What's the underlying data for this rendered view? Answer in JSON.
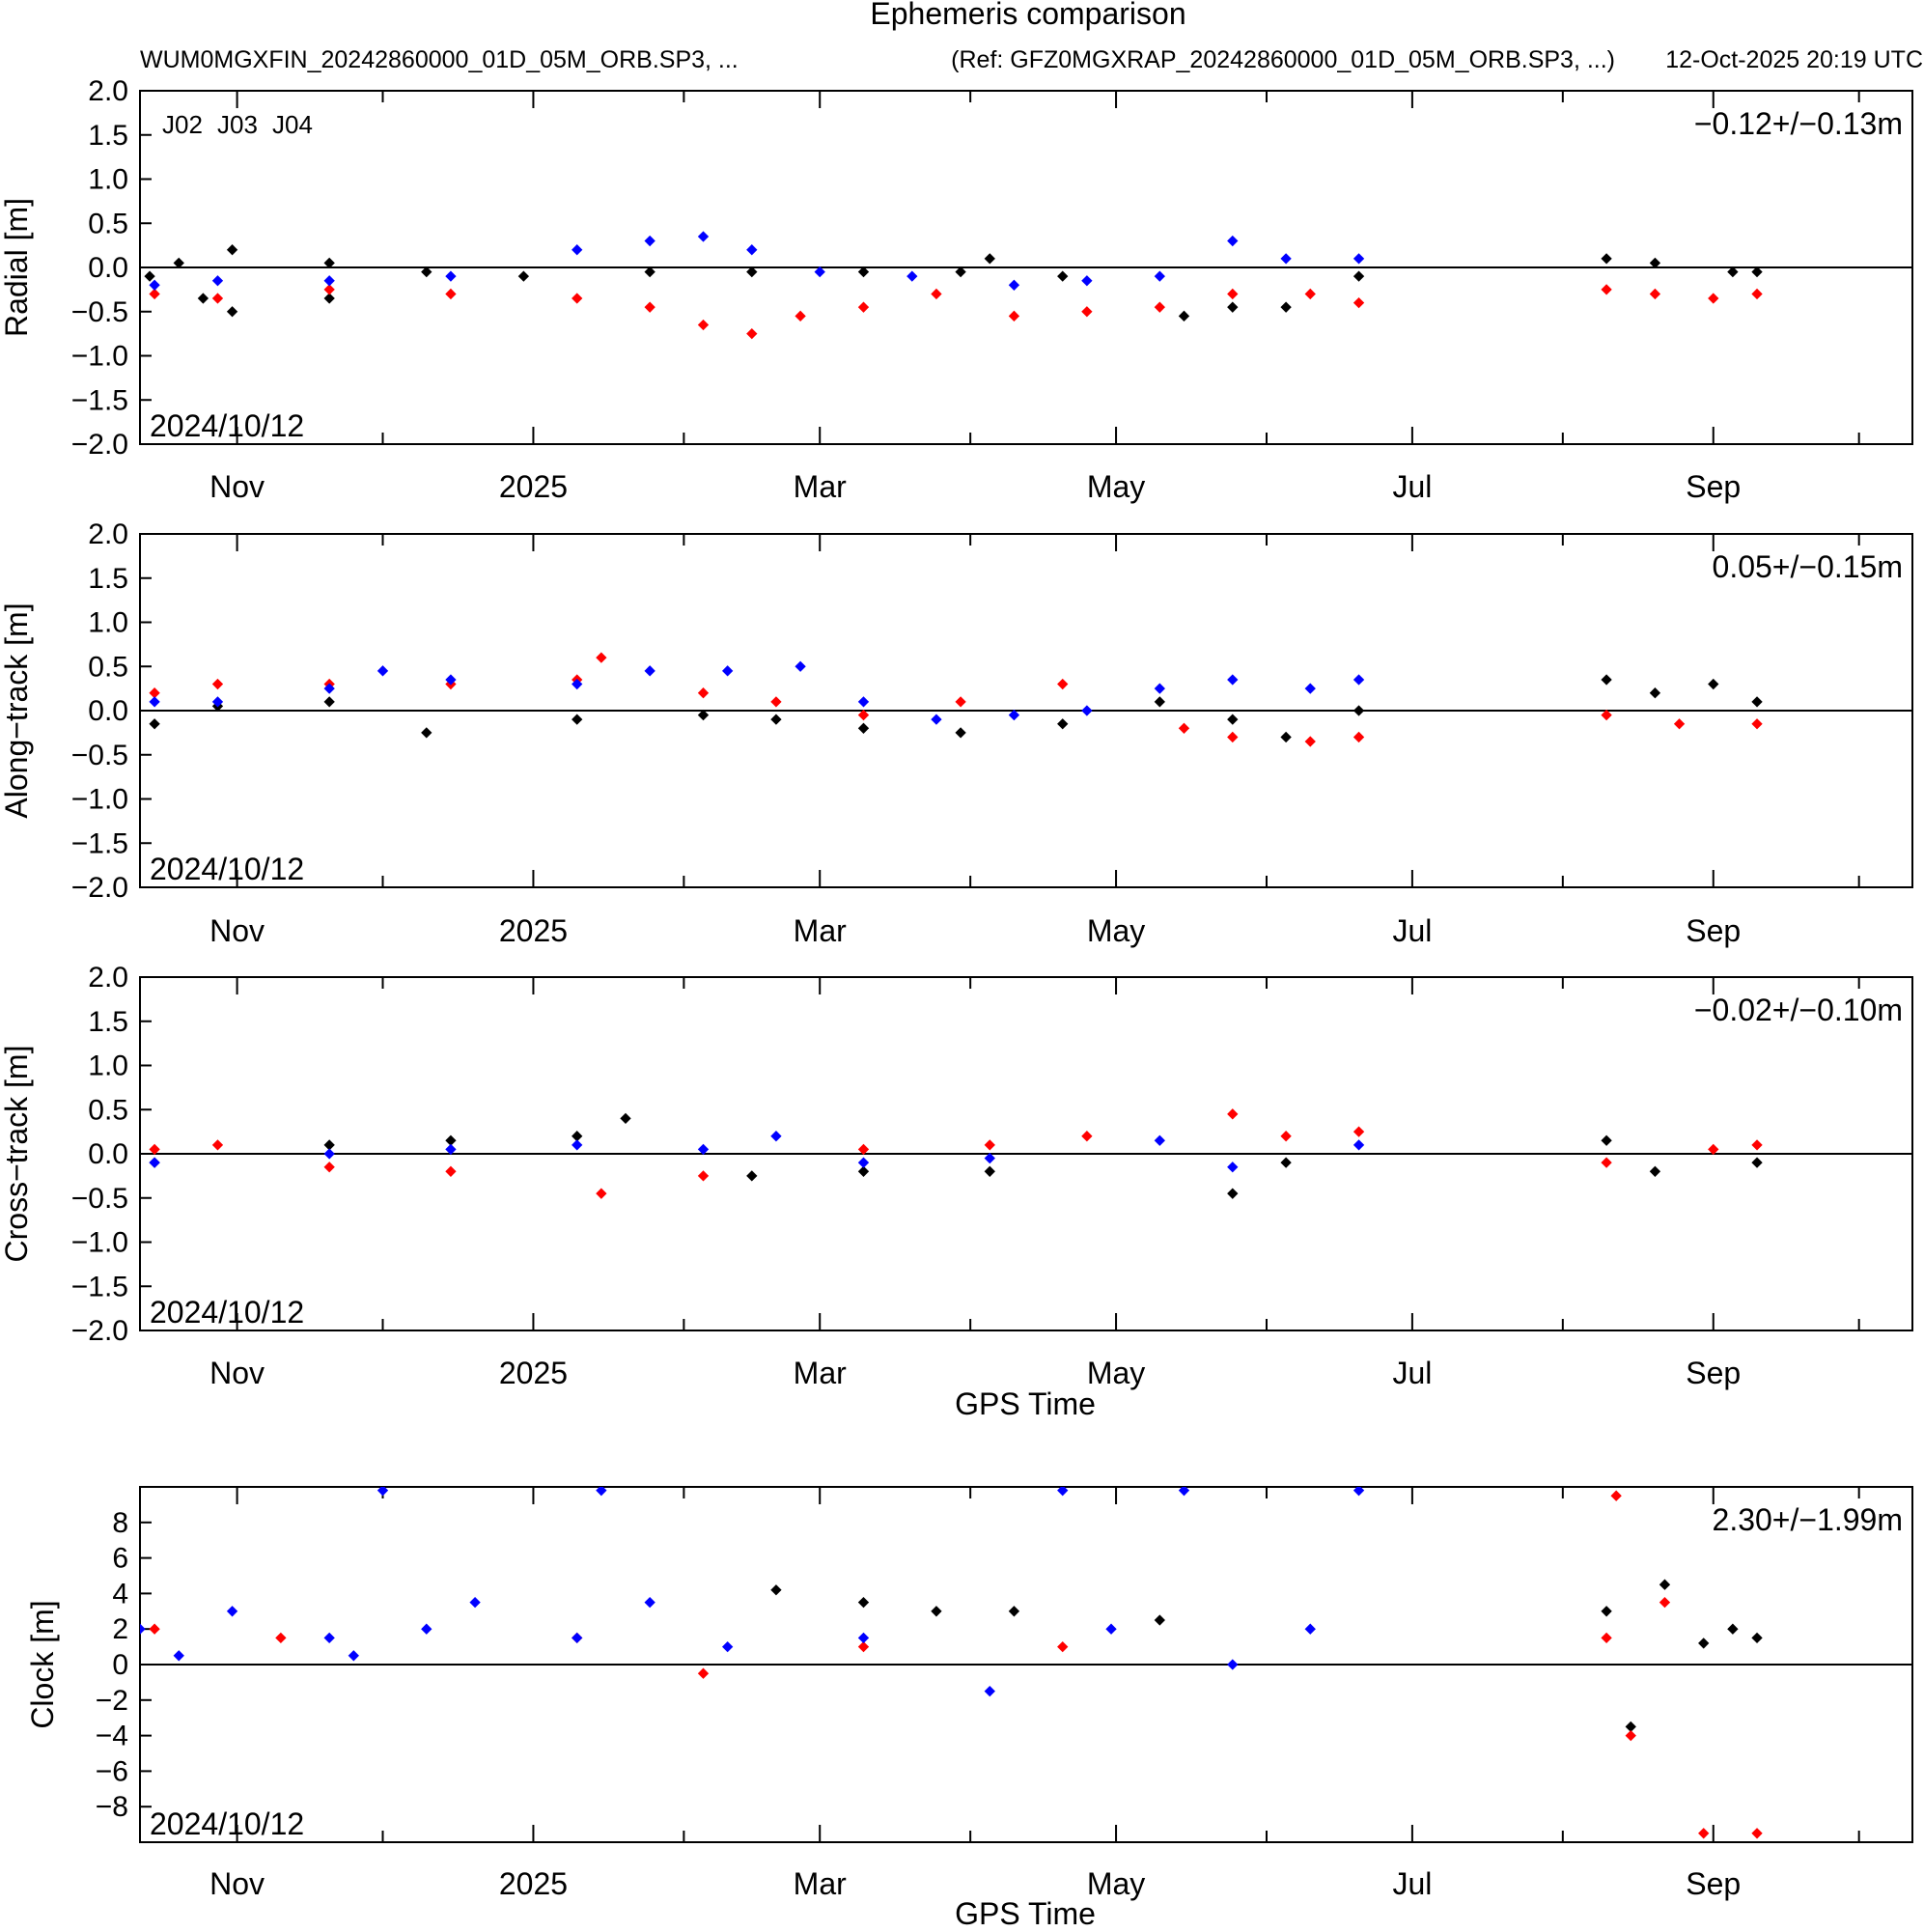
{
  "figure": {
    "title": "Ephemeris comparison",
    "solution": "WUM0MGXFIN_20242860000_01D_05M_ORB.SP3, ...",
    "reference": "(Ref: GFZ0MGXRAP_20242860000_01D_05M_ORB.SP3, ...)",
    "generated": "12-Oct-2025 20:19 UTC",
    "start_date_label": "2024/10/12"
  },
  "colors": {
    "J02": "#000000",
    "J03": "#ff0000",
    "J04": "#0000ff"
  },
  "legend": [
    {
      "name": "J02",
      "color": "#000000"
    },
    {
      "name": "J03",
      "color": "#ff0000"
    },
    {
      "name": "J04",
      "color": "#0000ff"
    }
  ],
  "chart_data": [
    {
      "type": "scatter",
      "ylabel": "Radial [m]",
      "xlabel": "",
      "ylim": [
        -2.0,
        2.0
      ],
      "yticks": [
        "2.0",
        "1.5",
        "1.0",
        "0.5",
        "0.0",
        "−0.5",
        "−1.0",
        "−1.5",
        "−2.0"
      ],
      "xlim": [
        "2024-10-12",
        "2025-10-12"
      ],
      "xtick_labels": [
        "Nov",
        "2025",
        "Mar",
        "May",
        "Jul",
        "Sep"
      ],
      "xtick_dates": [
        "2024-11-01",
        "2025-01-01",
        "2025-03-01",
        "2025-05-01",
        "2025-07-01",
        "2025-09-01"
      ],
      "stat": "−0.12+/−0.13m",
      "grid": false,
      "legend_position": "top-left",
      "series": [
        {
          "name": "J02",
          "color": "#000000",
          "points": [
            [
              "2024-10-14",
              -0.1
            ],
            [
              "2024-10-20",
              0.05
            ],
            [
              "2024-10-25",
              -0.35
            ],
            [
              "2024-10-31",
              0.2
            ],
            [
              "2024-10-31",
              -0.5
            ],
            [
              "2024-11-20",
              0.05
            ],
            [
              "2024-11-20",
              -0.35
            ],
            [
              "2024-12-10",
              -0.05
            ],
            [
              "2024-12-30",
              -0.1
            ],
            [
              "2025-01-25",
              -0.05
            ],
            [
              "2025-02-15",
              -0.05
            ],
            [
              "2025-03-10",
              -0.05
            ],
            [
              "2025-03-30",
              -0.05
            ],
            [
              "2025-04-05",
              0.1
            ],
            [
              "2025-04-20",
              -0.1
            ],
            [
              "2025-05-15",
              -0.55
            ],
            [
              "2025-05-25",
              -0.45
            ],
            [
              "2025-06-05",
              -0.45
            ],
            [
              "2025-06-20",
              -0.1
            ],
            [
              "2025-08-10",
              0.1
            ],
            [
              "2025-08-20",
              0.05
            ],
            [
              "2025-09-05",
              -0.05
            ],
            [
              "2025-09-10",
              -0.05
            ]
          ]
        },
        {
          "name": "J03",
          "color": "#ff0000",
          "points": [
            [
              "2024-10-15",
              -0.3
            ],
            [
              "2024-10-28",
              -0.35
            ],
            [
              "2024-11-20",
              -0.25
            ],
            [
              "2024-12-15",
              -0.3
            ],
            [
              "2025-01-10",
              -0.35
            ],
            [
              "2025-01-25",
              -0.45
            ],
            [
              "2025-02-05",
              -0.65
            ],
            [
              "2025-02-15",
              -0.75
            ],
            [
              "2025-02-25",
              -0.55
            ],
            [
              "2025-03-10",
              -0.45
            ],
            [
              "2025-03-25",
              -0.3
            ],
            [
              "2025-04-10",
              -0.55
            ],
            [
              "2025-04-25",
              -0.5
            ],
            [
              "2025-05-10",
              -0.45
            ],
            [
              "2025-05-25",
              -0.3
            ],
            [
              "2025-06-10",
              -0.3
            ],
            [
              "2025-06-20",
              -0.4
            ],
            [
              "2025-08-10",
              -0.25
            ],
            [
              "2025-08-20",
              -0.3
            ],
            [
              "2025-09-01",
              -0.35
            ],
            [
              "2025-09-10",
              -0.3
            ]
          ]
        },
        {
          "name": "J04",
          "color": "#0000ff",
          "points": [
            [
              "2024-10-15",
              -0.2
            ],
            [
              "2024-10-28",
              -0.15
            ],
            [
              "2024-11-20",
              -0.15
            ],
            [
              "2024-12-15",
              -0.1
            ],
            [
              "2025-01-10",
              0.2
            ],
            [
              "2025-01-25",
              0.3
            ],
            [
              "2025-02-05",
              0.35
            ],
            [
              "2025-02-15",
              0.2
            ],
            [
              "2025-03-01",
              -0.05
            ],
            [
              "2025-03-20",
              -0.1
            ],
            [
              "2025-04-10",
              -0.2
            ],
            [
              "2025-04-25",
              -0.15
            ],
            [
              "2025-05-10",
              -0.1
            ],
            [
              "2025-05-25",
              0.3
            ],
            [
              "2025-06-05",
              0.1
            ],
            [
              "2025-06-20",
              0.1
            ]
          ]
        }
      ]
    },
    {
      "type": "scatter",
      "ylabel": "Along−track [m]",
      "xlabel": "",
      "ylim": [
        -2.0,
        2.0
      ],
      "yticks": [
        "2.0",
        "1.5",
        "1.0",
        "0.5",
        "0.0",
        "−0.5",
        "−1.0",
        "−1.5",
        "−2.0"
      ],
      "xlim": [
        "2024-10-12",
        "2025-10-12"
      ],
      "xtick_labels": [
        "Nov",
        "2025",
        "Mar",
        "May",
        "Jul",
        "Sep"
      ],
      "xtick_dates": [
        "2024-11-01",
        "2025-01-01",
        "2025-03-01",
        "2025-05-01",
        "2025-07-01",
        "2025-09-01"
      ],
      "stat": "0.05+/−0.15m",
      "grid": false,
      "series": [
        {
          "name": "J02",
          "color": "#000000",
          "points": [
            [
              "2024-10-15",
              -0.15
            ],
            [
              "2024-10-28",
              0.05
            ],
            [
              "2024-11-20",
              0.1
            ],
            [
              "2024-12-10",
              -0.25
            ],
            [
              "2025-01-10",
              -0.1
            ],
            [
              "2025-02-05",
              -0.05
            ],
            [
              "2025-02-20",
              -0.1
            ],
            [
              "2025-03-10",
              -0.2
            ],
            [
              "2025-03-30",
              -0.25
            ],
            [
              "2025-04-20",
              -0.15
            ],
            [
              "2025-05-10",
              0.1
            ],
            [
              "2025-05-25",
              -0.1
            ],
            [
              "2025-06-05",
              -0.3
            ],
            [
              "2025-06-20",
              0.0
            ],
            [
              "2025-08-10",
              0.35
            ],
            [
              "2025-08-20",
              0.2
            ],
            [
              "2025-09-01",
              0.3
            ],
            [
              "2025-09-10",
              0.1
            ]
          ]
        },
        {
          "name": "J03",
          "color": "#ff0000",
          "points": [
            [
              "2024-10-15",
              0.2
            ],
            [
              "2024-10-28",
              0.3
            ],
            [
              "2024-11-20",
              0.3
            ],
            [
              "2024-12-15",
              0.3
            ],
            [
              "2025-01-10",
              0.35
            ],
            [
              "2025-01-15",
              0.6
            ],
            [
              "2025-02-05",
              0.2
            ],
            [
              "2025-02-20",
              0.1
            ],
            [
              "2025-03-10",
              -0.05
            ],
            [
              "2025-03-30",
              0.1
            ],
            [
              "2025-04-20",
              0.3
            ],
            [
              "2025-05-15",
              -0.2
            ],
            [
              "2025-05-25",
              -0.3
            ],
            [
              "2025-06-10",
              -0.35
            ],
            [
              "2025-06-20",
              -0.3
            ],
            [
              "2025-08-10",
              -0.05
            ],
            [
              "2025-08-25",
              -0.15
            ],
            [
              "2025-09-10",
              -0.15
            ]
          ]
        },
        {
          "name": "J04",
          "color": "#0000ff",
          "points": [
            [
              "2024-10-15",
              0.1
            ],
            [
              "2024-10-28",
              0.1
            ],
            [
              "2024-11-20",
              0.25
            ],
            [
              "2024-12-01",
              0.45
            ],
            [
              "2024-12-15",
              0.35
            ],
            [
              "2025-01-10",
              0.3
            ],
            [
              "2025-01-25",
              0.45
            ],
            [
              "2025-02-10",
              0.45
            ],
            [
              "2025-02-25",
              0.5
            ],
            [
              "2025-03-10",
              0.1
            ],
            [
              "2025-03-25",
              -0.1
            ],
            [
              "2025-04-10",
              -0.05
            ],
            [
              "2025-04-25",
              0.0
            ],
            [
              "2025-05-10",
              0.25
            ],
            [
              "2025-05-25",
              0.35
            ],
            [
              "2025-06-10",
              0.25
            ],
            [
              "2025-06-20",
              0.35
            ]
          ]
        }
      ]
    },
    {
      "type": "scatter",
      "ylabel": "Cross−track [m]",
      "xlabel": "GPS Time",
      "ylim": [
        -2.0,
        2.0
      ],
      "yticks": [
        "2.0",
        "1.5",
        "1.0",
        "0.5",
        "0.0",
        "−0.5",
        "−1.0",
        "−1.5",
        "−2.0"
      ],
      "xlim": [
        "2024-10-12",
        "2025-10-12"
      ],
      "xtick_labels": [
        "Nov",
        "2025",
        "Mar",
        "May",
        "Jul",
        "Sep"
      ],
      "xtick_dates": [
        "2024-11-01",
        "2025-01-01",
        "2025-03-01",
        "2025-05-01",
        "2025-07-01",
        "2025-09-01"
      ],
      "stat": "−0.02+/−0.10m",
      "grid": false,
      "series": [
        {
          "name": "J02",
          "color": "#000000",
          "points": [
            [
              "2024-10-15",
              -0.1
            ],
            [
              "2024-11-20",
              0.1
            ],
            [
              "2024-12-15",
              0.15
            ],
            [
              "2025-01-10",
              0.2
            ],
            [
              "2025-01-20",
              0.4
            ],
            [
              "2025-02-15",
              -0.25
            ],
            [
              "2025-03-10",
              -0.2
            ],
            [
              "2025-04-05",
              -0.2
            ],
            [
              "2025-05-25",
              -0.45
            ],
            [
              "2025-06-05",
              -0.1
            ],
            [
              "2025-08-10",
              0.15
            ],
            [
              "2025-08-20",
              -0.2
            ],
            [
              "2025-09-10",
              -0.1
            ]
          ]
        },
        {
          "name": "J03",
          "color": "#ff0000",
          "points": [
            [
              "2024-10-15",
              0.05
            ],
            [
              "2024-10-28",
              0.1
            ],
            [
              "2024-11-20",
              -0.15
            ],
            [
              "2024-12-15",
              -0.2
            ],
            [
              "2025-01-15",
              -0.45
            ],
            [
              "2025-02-05",
              -0.25
            ],
            [
              "2025-03-10",
              0.05
            ],
            [
              "2025-04-05",
              0.1
            ],
            [
              "2025-04-25",
              0.2
            ],
            [
              "2025-05-25",
              0.45
            ],
            [
              "2025-06-05",
              0.2
            ],
            [
              "2025-06-20",
              0.25
            ],
            [
              "2025-08-10",
              -0.1
            ],
            [
              "2025-09-01",
              0.05
            ],
            [
              "2025-09-10",
              0.1
            ]
          ]
        },
        {
          "name": "J04",
          "color": "#0000ff",
          "points": [
            [
              "2024-10-15",
              -0.1
            ],
            [
              "2024-11-20",
              0.0
            ],
            [
              "2024-12-15",
              0.05
            ],
            [
              "2025-01-10",
              0.1
            ],
            [
              "2025-02-05",
              0.05
            ],
            [
              "2025-02-20",
              0.2
            ],
            [
              "2025-03-10",
              -0.1
            ],
            [
              "2025-04-05",
              -0.05
            ],
            [
              "2025-05-10",
              0.15
            ],
            [
              "2025-05-25",
              -0.15
            ],
            [
              "2025-06-20",
              0.1
            ]
          ]
        }
      ]
    },
    {
      "type": "scatter",
      "ylabel": "Clock [m]",
      "xlabel": "GPS Time",
      "ylim": [
        -10,
        10
      ],
      "yticks": [
        "8",
        "6",
        "4",
        "2",
        "0",
        "−2",
        "−4",
        "−6",
        "−8"
      ],
      "xlim": [
        "2024-10-12",
        "2025-10-12"
      ],
      "xtick_labels": [
        "Nov",
        "2025",
        "Mar",
        "May",
        "Jul",
        "Sep"
      ],
      "xtick_dates": [
        "2024-11-01",
        "2025-01-01",
        "2025-03-01",
        "2025-05-01",
        "2025-07-01",
        "2025-09-01"
      ],
      "stat": "2.30+/−1.99m",
      "grid": false,
      "series": [
        {
          "name": "J02",
          "color": "#000000",
          "points": [
            [
              "2025-02-20",
              4.2
            ],
            [
              "2025-03-10",
              3.5
            ],
            [
              "2025-03-25",
              3.0
            ],
            [
              "2025-04-10",
              3.0
            ],
            [
              "2025-05-10",
              2.5
            ],
            [
              "2025-08-10",
              3.0
            ],
            [
              "2025-08-15",
              -3.5
            ],
            [
              "2025-08-22",
              4.5
            ],
            [
              "2025-08-30",
              1.2
            ],
            [
              "2025-09-05",
              2.0
            ],
            [
              "2025-09-10",
              1.5
            ]
          ]
        },
        {
          "name": "J03",
          "color": "#ff0000",
          "points": [
            [
              "2024-10-15",
              2.0
            ],
            [
              "2024-11-10",
              1.5
            ],
            [
              "2025-01-10",
              1.5
            ],
            [
              "2025-02-05",
              -0.5
            ],
            [
              "2025-03-10",
              1.0
            ],
            [
              "2025-04-20",
              1.0
            ],
            [
              "2025-08-10",
              1.5
            ],
            [
              "2025-08-12",
              9.5
            ],
            [
              "2025-08-15",
              -4.0
            ],
            [
              "2025-08-22",
              3.5
            ],
            [
              "2025-08-30",
              -9.5
            ],
            [
              "2025-09-10",
              -9.5
            ]
          ]
        },
        {
          "name": "J04",
          "color": "#0000ff",
          "points": [
            [
              "2024-10-12",
              2.0
            ],
            [
              "2024-10-20",
              0.5
            ],
            [
              "2024-10-31",
              3.0
            ],
            [
              "2024-11-20",
              1.5
            ],
            [
              "2024-11-25",
              0.5
            ],
            [
              "2024-12-01",
              9.8
            ],
            [
              "2024-12-10",
              2.0
            ],
            [
              "2024-12-20",
              3.5
            ],
            [
              "2025-01-10",
              1.5
            ],
            [
              "2025-01-15",
              9.8
            ],
            [
              "2025-01-25",
              3.5
            ],
            [
              "2025-02-10",
              1.0
            ],
            [
              "2025-03-10",
              1.5
            ],
            [
              "2025-04-05",
              -1.5
            ],
            [
              "2025-04-20",
              9.8
            ],
            [
              "2025-04-30",
              2.0
            ],
            [
              "2025-05-15",
              9.8
            ],
            [
              "2025-05-25",
              0.0
            ],
            [
              "2025-06-10",
              2.0
            ],
            [
              "2025-06-20",
              9.8
            ]
          ]
        }
      ]
    }
  ]
}
